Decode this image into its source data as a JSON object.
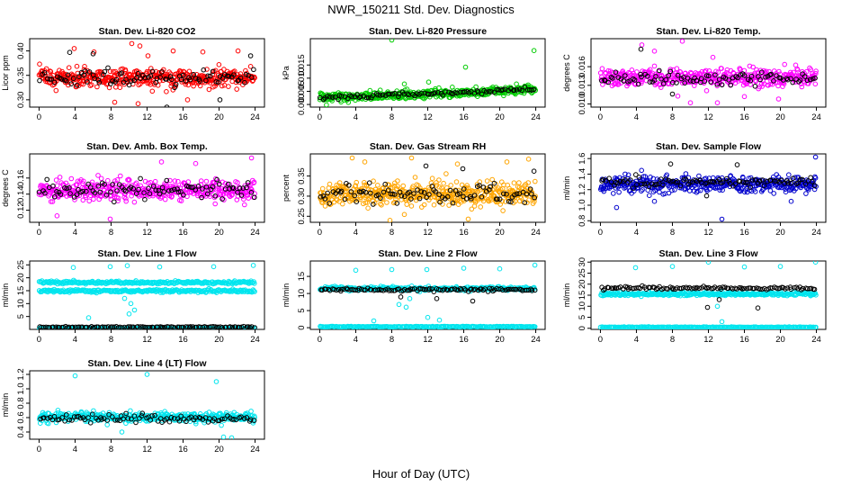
{
  "page": {
    "title": "NWR_150211  Std. Dev. Diagnostics",
    "xlabel": "Hour of Day (UTC)"
  },
  "chart_data": [
    {
      "type": "scatter",
      "title": "Stan. Dev. Li-820 CO2",
      "ylabel": "Licor ppm",
      "xlim": [
        0,
        24
      ],
      "xticks": [
        0,
        4,
        8,
        12,
        16,
        20,
        24
      ],
      "ylim": [
        0.285,
        0.425
      ],
      "yticks": [
        0.3,
        0.35,
        0.4
      ],
      "ytick_labels": [
        "0.30",
        "0.35",
        "0.40"
      ],
      "series": [
        {
          "color": "#ff0000",
          "kind": "band",
          "center": 0.345,
          "spread": 0.018,
          "count": 420,
          "outliers": [
            [
              3.9,
              0.405
            ],
            [
              6.1,
              0.398
            ],
            [
              10.3,
              0.415
            ],
            [
              11.2,
              0.41
            ],
            [
              12.1,
              0.39
            ],
            [
              14.9,
              0.4
            ],
            [
              18.2,
              0.398
            ],
            [
              22.1,
              0.4
            ],
            [
              8.4,
              0.295
            ],
            [
              11.0,
              0.292
            ],
            [
              16.5,
              0.3
            ]
          ]
        },
        {
          "color": "#000000",
          "kind": "band",
          "center": 0.344,
          "spread": 0.014,
          "count": 90,
          "outliers": [
            [
              3.4,
              0.397
            ],
            [
              6.0,
              0.394
            ],
            [
              23.5,
              0.39
            ],
            [
              14.2,
              0.285
            ],
            [
              20.1,
              0.3
            ]
          ]
        }
      ]
    },
    {
      "type": "scatter",
      "title": "Stan. Dev. Li-820 Pressure",
      "ylabel": "kPa",
      "xlim": [
        0,
        24
      ],
      "xticks": [
        0,
        4,
        8,
        12,
        16,
        20,
        24
      ],
      "ylim": [
        -0.001,
        0.025
      ],
      "yticks": [
        0.0,
        0.005,
        0.01,
        0.015
      ],
      "ytick_labels": [
        "0.000",
        "0.005",
        "0.010",
        "0.015"
      ],
      "series": [
        {
          "color": "#00cc00",
          "kind": "trend",
          "start": 0.0025,
          "end": 0.0055,
          "spread": 0.0015,
          "count": 440,
          "outliers": [
            [
              8.0,
              0.0245
            ],
            [
              23.8,
              0.0205
            ],
            [
              16.2,
              0.0142
            ],
            [
              12.1,
              0.0085
            ],
            [
              9.4,
              0.0078
            ]
          ]
        },
        {
          "color": "#000000",
          "kind": "trend",
          "start": 0.0025,
          "end": 0.0058,
          "spread": 0.0007,
          "count": 90,
          "outliers": []
        }
      ]
    },
    {
      "type": "scatter",
      "title": "Stan. Dev. Li-820 Temp.",
      "ylabel": "degrees C",
      "xlim": [
        0,
        24
      ],
      "xticks": [
        0,
        4,
        8,
        12,
        16,
        20,
        24
      ],
      "ylim": [
        0.0095,
        0.0205
      ],
      "yticks": [
        0.01,
        0.013,
        0.016
      ],
      "ytick_labels": [
        "0.010",
        "0.013",
        "0.016"
      ],
      "series": [
        {
          "color": "#ff00ff",
          "kind": "band",
          "center": 0.0142,
          "spread": 0.0012,
          "count": 420,
          "outliers": [
            [
              4.6,
              0.0195
            ],
            [
              9.1,
              0.0201
            ],
            [
              6.0,
              0.0185
            ],
            [
              12.5,
              0.0175
            ],
            [
              10.0,
              0.0102
            ],
            [
              13.0,
              0.0102
            ],
            [
              16.0,
              0.0112
            ],
            [
              19.8,
              0.0108
            ]
          ]
        },
        {
          "color": "#000000",
          "kind": "band",
          "center": 0.0141,
          "spread": 0.001,
          "count": 90,
          "outliers": [
            [
              4.5,
              0.0188
            ],
            [
              8.0,
              0.0116
            ]
          ]
        }
      ]
    },
    {
      "type": "scatter",
      "title": "Stan. Dev. Amb. Box Temp.",
      "ylabel": "degrees C",
      "xlim": [
        0,
        24
      ],
      "xticks": [
        0,
        4,
        8,
        12,
        16,
        20,
        24
      ],
      "ylim": [
        0.105,
        0.19
      ],
      "yticks": [
        0.12,
        0.14,
        0.16
      ],
      "ytick_labels": [
        "0.12",
        "0.14",
        "0.16"
      ],
      "series": [
        {
          "color": "#ff00ff",
          "kind": "band",
          "center": 0.145,
          "spread": 0.012,
          "count": 420,
          "outliers": [
            [
              7.9,
              0.109
            ],
            [
              13.6,
              0.18
            ],
            [
              23.6,
              0.185
            ],
            [
              2.0,
              0.113
            ],
            [
              17.4,
              0.178
            ]
          ]
        },
        {
          "color": "#000000",
          "kind": "band",
          "center": 0.145,
          "spread": 0.009,
          "count": 90,
          "outliers": []
        }
      ]
    },
    {
      "type": "scatter",
      "title": "Stan. Dev. Gas Stream RH",
      "ylabel": "percent",
      "xlim": [
        0,
        24
      ],
      "xticks": [
        0,
        4,
        8,
        12,
        16,
        20,
        24
      ],
      "ylim": [
        0.235,
        0.405
      ],
      "yticks": [
        0.25,
        0.3,
        0.35
      ],
      "ytick_labels": [
        "0.25",
        "0.30",
        "0.35"
      ],
      "series": [
        {
          "color": "#ffa500",
          "kind": "band",
          "center": 0.305,
          "spread": 0.026,
          "count": 460,
          "outliers": [
            [
              3.6,
              0.395
            ],
            [
              5.0,
              0.385
            ],
            [
              10.2,
              0.395
            ],
            [
              15.3,
              0.38
            ],
            [
              20.8,
              0.385
            ],
            [
              23.2,
              0.392
            ],
            [
              7.8,
              0.24
            ],
            [
              16.5,
              0.243
            ]
          ]
        },
        {
          "color": "#000000",
          "kind": "band",
          "center": 0.305,
          "spread": 0.022,
          "count": 90,
          "outliers": [
            [
              11.8,
              0.375
            ],
            [
              15.9,
              0.368
            ],
            [
              23.8,
              0.362
            ]
          ]
        }
      ]
    },
    {
      "type": "scatter",
      "title": "Stan. Dev. Sample Flow",
      "ylabel": "ml/min",
      "xlim": [
        0,
        24
      ],
      "xticks": [
        0,
        4,
        8,
        12,
        16,
        20,
        24
      ],
      "ylim": [
        0.78,
        1.66
      ],
      "yticks": [
        0.8,
        1.0,
        1.2,
        1.4,
        1.6
      ],
      "ytick_labels": [
        "0.8",
        "1.0",
        "1.2",
        "1.4",
        "1.6"
      ],
      "series": [
        {
          "color": "#0000cd",
          "kind": "band",
          "center": 1.27,
          "spread": 0.09,
          "count": 420,
          "outliers": [
            [
              23.9,
              1.62
            ],
            [
              13.5,
              0.82
            ],
            [
              1.8,
              0.97
            ],
            [
              6.0,
              1.05
            ],
            [
              21.2,
              1.05
            ]
          ]
        },
        {
          "color": "#000000",
          "kind": "band",
          "center": 1.3,
          "spread": 0.06,
          "count": 90,
          "outliers": [
            [
              7.8,
              1.53
            ],
            [
              15.2,
              1.52
            ],
            [
              11.8,
              1.12
            ]
          ]
        }
      ]
    },
    {
      "type": "scatter",
      "title": "Stan. Dev. Line 1 Flow",
      "ylabel": "ml/min",
      "xlim": [
        0,
        24
      ],
      "xticks": [
        0,
        4,
        8,
        12,
        16,
        20,
        24
      ],
      "ylim": [
        0,
        26.5
      ],
      "yticks": [
        5,
        10,
        15,
        20,
        25
      ],
      "ytick_labels": [
        "5",
        "10",
        "15",
        "20",
        "25"
      ],
      "series": [
        {
          "color": "#00e5ee",
          "kind": "band",
          "center": 18.2,
          "spread": 0.5,
          "count": 260,
          "outliers": [
            [
              3.8,
              24.0
            ],
            [
              7.9,
              24.3
            ],
            [
              9.8,
              24.7
            ],
            [
              13.4,
              24.2
            ],
            [
              19.4,
              24.3
            ],
            [
              23.8,
              24.8
            ],
            [
              10.0,
              6.0
            ],
            [
              10.6,
              7.5
            ],
            [
              10.2,
              10.0
            ],
            [
              9.5,
              12.0
            ],
            [
              5.5,
              4.5
            ]
          ]
        },
        {
          "color": "#00e5ee",
          "kind": "band",
          "center": 14.9,
          "spread": 0.5,
          "count": 260,
          "outliers": []
        },
        {
          "color": "#00e5ee",
          "kind": "band",
          "center": 0.4,
          "spread": 0.15,
          "count": 200,
          "outliers": []
        },
        {
          "color": "#000000",
          "kind": "band",
          "center": 0.9,
          "spread": 0.2,
          "count": 110,
          "outliers": []
        }
      ]
    },
    {
      "type": "scatter",
      "title": "Stan. Dev. Line 2 Flow",
      "ylabel": "ml/min",
      "xlim": [
        0,
        24
      ],
      "xticks": [
        0,
        4,
        8,
        12,
        16,
        20,
        24
      ],
      "ylim": [
        -0.5,
        19.5
      ],
      "yticks": [
        0,
        5,
        10,
        15
      ],
      "ytick_labels": [
        "0",
        "5",
        "10",
        "15"
      ],
      "series": [
        {
          "color": "#00e5ee",
          "kind": "band",
          "center": 11.4,
          "spread": 0.5,
          "count": 280,
          "outliers": [
            [
              4.0,
              16.8
            ],
            [
              8.0,
              17.0
            ],
            [
              11.9,
              17.0
            ],
            [
              16.0,
              17.4
            ],
            [
              20.0,
              17.2
            ],
            [
              23.9,
              18.3
            ],
            [
              6.0,
              2.0
            ],
            [
              9.6,
              6.0
            ],
            [
              10.0,
              8.5
            ],
            [
              12.0,
              3.0
            ],
            [
              13.3,
              2.2
            ],
            [
              8.8,
              6.8
            ]
          ]
        },
        {
          "color": "#00e5ee",
          "kind": "band",
          "center": 0.3,
          "spread": 0.1,
          "count": 220,
          "outliers": []
        },
        {
          "color": "#000000",
          "kind": "band",
          "center": 11.1,
          "spread": 0.4,
          "count": 110,
          "outliers": [
            [
              9.0,
              9.0
            ],
            [
              13.0,
              8.5
            ],
            [
              17.0,
              7.8
            ]
          ]
        }
      ]
    },
    {
      "type": "scatter",
      "title": "Stan. Dev. Line 3 Flow",
      "ylabel": "ml/min",
      "xlim": [
        0,
        24
      ],
      "xticks": [
        0,
        4,
        8,
        12,
        16,
        20,
        24
      ],
      "ylim": [
        -0.5,
        30.5
      ],
      "yticks": [
        0,
        5,
        10,
        15,
        20,
        25,
        30
      ],
      "ytick_labels": [
        "0",
        "5",
        "10",
        "15",
        "20",
        "25",
        "30"
      ],
      "series": [
        {
          "color": "#00e5ee",
          "kind": "band",
          "center": 15.5,
          "spread": 0.7,
          "count": 320,
          "outliers": [
            [
              3.9,
              27.5
            ],
            [
              8.0,
              28.0
            ],
            [
              12.0,
              30.0
            ],
            [
              16.0,
              27.8
            ],
            [
              20.0,
              28.0
            ],
            [
              23.9,
              30.0
            ],
            [
              13.5,
              3.0
            ],
            [
              13.0,
              10.0
            ]
          ]
        },
        {
          "color": "#00e5ee",
          "kind": "band",
          "center": 0.5,
          "spread": 0.15,
          "count": 220,
          "outliers": []
        },
        {
          "color": "#000000",
          "kind": "band",
          "center": 18.2,
          "spread": 0.6,
          "count": 110,
          "outliers": [
            [
              11.9,
              9.5
            ],
            [
              17.5,
              9.2
            ],
            [
              13.2,
              13.0
            ]
          ]
        }
      ]
    },
    {
      "type": "scatter",
      "title": "Stan. Dev. Line 4 (LT) Flow",
      "ylabel": "ml/min",
      "xlim": [
        0,
        24
      ],
      "xticks": [
        0,
        4,
        8,
        12,
        16,
        20,
        24
      ],
      "ylim": [
        0.3,
        1.25
      ],
      "yticks": [
        0.4,
        0.6,
        0.8,
        1.0,
        1.2
      ],
      "ytick_labels": [
        "0.4",
        "0.6",
        "0.8",
        "1.0",
        "1.2"
      ],
      "series": [
        {
          "color": "#00e5ee",
          "kind": "band",
          "center": 0.6,
          "spread": 0.06,
          "count": 420,
          "outliers": [
            [
              4.0,
              1.18
            ],
            [
              12.0,
              1.2
            ],
            [
              19.7,
              1.1
            ],
            [
              20.5,
              0.33
            ],
            [
              21.4,
              0.32
            ],
            [
              9.2,
              0.4
            ]
          ]
        },
        {
          "color": "#000000",
          "kind": "band",
          "center": 0.59,
          "spread": 0.05,
          "count": 90,
          "outliers": []
        }
      ]
    }
  ]
}
